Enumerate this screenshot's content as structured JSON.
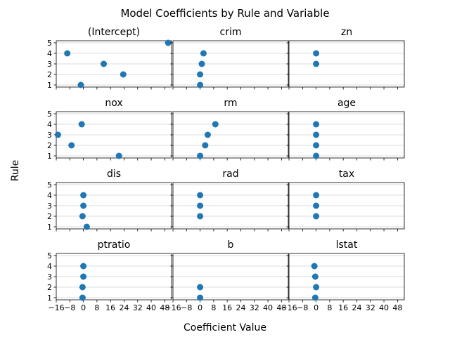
{
  "chart_data": {
    "type": "scatter",
    "title": "Model Coefficients by Rule and Variable",
    "xlabel": "Coefficient Value",
    "ylabel": "Rule",
    "xlim": [
      -16,
      52
    ],
    "ylim": [
      0.8,
      5.2
    ],
    "xticks": [
      -16,
      -8,
      0,
      8,
      16,
      24,
      32,
      40,
      48
    ],
    "xtick_labels": [
      "−16",
      "−8",
      "0",
      "8",
      "16",
      "24",
      "32",
      "40",
      "48"
    ],
    "yticks": [
      1,
      2,
      3,
      4,
      5
    ],
    "ytick_labels": [
      "1",
      "2",
      "3",
      "4",
      "5"
    ],
    "grid": "horizontal",
    "color": "#1f77b4",
    "panels": [
      {
        "name": "(Intercept)",
        "points": [
          {
            "x": 50,
            "y": 5
          },
          {
            "x": -9.5,
            "y": 4
          },
          {
            "x": 12,
            "y": 3
          },
          {
            "x": 23.5,
            "y": 2
          },
          {
            "x": -1.5,
            "y": 1
          }
        ]
      },
      {
        "name": "crim",
        "points": [
          {
            "x": 2,
            "y": 4
          },
          {
            "x": 1,
            "y": 3
          },
          {
            "x": 0,
            "y": 2
          },
          {
            "x": 0,
            "y": 1
          }
        ]
      },
      {
        "name": "zn",
        "points": [
          {
            "x": 0,
            "y": 4
          },
          {
            "x": 0,
            "y": 3
          }
        ]
      },
      {
        "name": "nox",
        "points": [
          {
            "x": -1,
            "y": 4
          },
          {
            "x": -15,
            "y": 3
          },
          {
            "x": -7,
            "y": 2
          },
          {
            "x": 21,
            "y": 1
          }
        ]
      },
      {
        "name": "rm",
        "points": [
          {
            "x": 9,
            "y": 4
          },
          {
            "x": 4.5,
            "y": 3
          },
          {
            "x": 3,
            "y": 2
          },
          {
            "x": 0,
            "y": 1
          }
        ]
      },
      {
        "name": "age",
        "points": [
          {
            "x": 0,
            "y": 4
          },
          {
            "x": 0,
            "y": 3
          },
          {
            "x": 0,
            "y": 2
          },
          {
            "x": 0,
            "y": 1
          }
        ]
      },
      {
        "name": "dis",
        "points": [
          {
            "x": 0,
            "y": 4
          },
          {
            "x": 0,
            "y": 3
          },
          {
            "x": -0.5,
            "y": 2
          },
          {
            "x": 2,
            "y": 1
          }
        ]
      },
      {
        "name": "rad",
        "points": [
          {
            "x": 0,
            "y": 4
          },
          {
            "x": 0,
            "y": 3
          },
          {
            "x": 0,
            "y": 2
          }
        ]
      },
      {
        "name": "tax",
        "points": [
          {
            "x": 0,
            "y": 4
          },
          {
            "x": 0,
            "y": 3
          },
          {
            "x": 0,
            "y": 2
          }
        ]
      },
      {
        "name": "ptratio",
        "points": [
          {
            "x": 0,
            "y": 4
          },
          {
            "x": 0,
            "y": 3
          },
          {
            "x": -0.5,
            "y": 2
          },
          {
            "x": -0.5,
            "y": 1
          }
        ]
      },
      {
        "name": "b",
        "points": [
          {
            "x": 0,
            "y": 2
          },
          {
            "x": 0,
            "y": 1
          }
        ]
      },
      {
        "name": "lstat",
        "points": [
          {
            "x": -1,
            "y": 4
          },
          {
            "x": -0.5,
            "y": 3
          },
          {
            "x": 0,
            "y": 2
          },
          {
            "x": -0.5,
            "y": 1
          }
        ]
      }
    ]
  }
}
